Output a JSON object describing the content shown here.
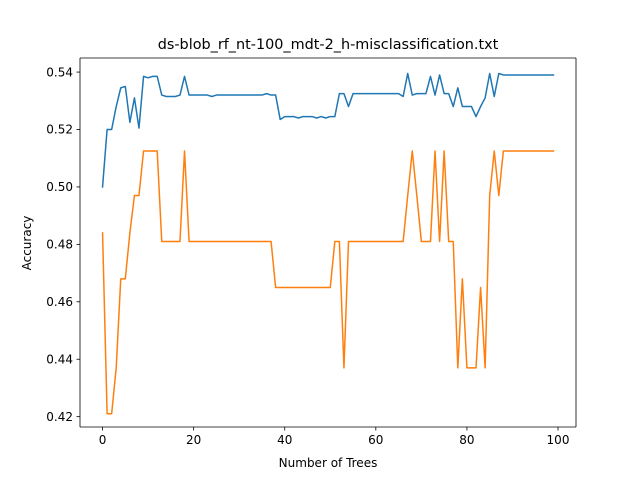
{
  "chart_data": {
    "type": "line",
    "title": "ds-blob_rf_nt-100_mdt-2_h-misclassification.txt",
    "xlabel": "Number of Trees",
    "ylabel": "Accuracy",
    "xlim": [
      -4.95,
      103.95
    ],
    "ylim": [
      0.4164,
      0.5449
    ],
    "xticks": [
      0,
      20,
      40,
      60,
      80,
      100
    ],
    "xtick_labels": [
      "0",
      "20",
      "40",
      "60",
      "80",
      "100"
    ],
    "yticks": [
      0.42,
      0.44,
      0.46,
      0.48,
      0.5,
      0.52,
      0.54
    ],
    "ytick_labels": [
      "0.42",
      "0.44",
      "0.46",
      "0.48",
      "0.50",
      "0.52",
      "0.54"
    ],
    "grid": false,
    "legend": "none",
    "x": [
      0,
      1,
      2,
      3,
      4,
      5,
      6,
      7,
      8,
      9,
      10,
      11,
      12,
      13,
      14,
      15,
      16,
      17,
      18,
      19,
      20,
      21,
      22,
      23,
      24,
      25,
      26,
      27,
      28,
      29,
      30,
      31,
      32,
      33,
      34,
      35,
      36,
      37,
      38,
      39,
      40,
      41,
      42,
      43,
      44,
      45,
      46,
      47,
      48,
      49,
      50,
      51,
      52,
      53,
      54,
      55,
      56,
      57,
      58,
      59,
      60,
      61,
      62,
      63,
      64,
      65,
      66,
      67,
      68,
      69,
      70,
      71,
      72,
      73,
      74,
      75,
      76,
      77,
      78,
      79,
      80,
      81,
      82,
      83,
      84,
      85,
      86,
      87,
      88,
      89,
      90,
      91,
      92,
      93,
      94,
      95,
      96,
      97,
      98,
      99
    ],
    "series": [
      {
        "color": "#1f77b4",
        "values": [
          0.5,
          0.52,
          0.52,
          0.528,
          0.5345,
          0.535,
          0.5225,
          0.531,
          0.5205,
          0.5385,
          0.538,
          0.5385,
          0.5385,
          0.532,
          0.5315,
          0.5315,
          0.5315,
          0.532,
          0.5385,
          0.532,
          0.532,
          0.532,
          0.532,
          0.532,
          0.5315,
          0.532,
          0.532,
          0.532,
          0.532,
          0.532,
          0.532,
          0.532,
          0.532,
          0.532,
          0.532,
          0.532,
          0.5325,
          0.532,
          0.532,
          0.5235,
          0.5245,
          0.5245,
          0.5245,
          0.524,
          0.5245,
          0.5245,
          0.5245,
          0.524,
          0.5245,
          0.524,
          0.5245,
          0.5245,
          0.5325,
          0.5325,
          0.528,
          0.5325,
          0.5325,
          0.5325,
          0.5325,
          0.5325,
          0.5325,
          0.5325,
          0.5325,
          0.5325,
          0.5325,
          0.5325,
          0.5315,
          0.5395,
          0.532,
          0.5325,
          0.5325,
          0.5325,
          0.5385,
          0.532,
          0.539,
          0.5325,
          0.5325,
          0.528,
          0.5345,
          0.528,
          0.528,
          0.528,
          0.5245,
          0.528,
          0.531,
          0.5395,
          0.5315,
          0.5395,
          0.539,
          0.539,
          0.539,
          0.539,
          0.539,
          0.539,
          0.539,
          0.539,
          0.539,
          0.539,
          0.539,
          0.539
        ]
      },
      {
        "color": "#ff7f0e",
        "values": [
          0.484,
          0.421,
          0.421,
          0.437,
          0.468,
          0.468,
          0.484,
          0.497,
          0.497,
          0.5125,
          0.5125,
          0.5125,
          0.5125,
          0.481,
          0.481,
          0.481,
          0.481,
          0.481,
          0.5125,
          0.481,
          0.481,
          0.481,
          0.481,
          0.481,
          0.481,
          0.481,
          0.481,
          0.481,
          0.481,
          0.481,
          0.481,
          0.481,
          0.481,
          0.481,
          0.481,
          0.481,
          0.481,
          0.481,
          0.465,
          0.465,
          0.465,
          0.465,
          0.465,
          0.465,
          0.465,
          0.465,
          0.465,
          0.465,
          0.465,
          0.465,
          0.465,
          0.481,
          0.481,
          0.437,
          0.481,
          0.481,
          0.481,
          0.481,
          0.481,
          0.481,
          0.481,
          0.481,
          0.481,
          0.481,
          0.481,
          0.481,
          0.481,
          0.497,
          0.5125,
          0.497,
          0.481,
          0.481,
          0.481,
          0.5125,
          0.481,
          0.5125,
          0.481,
          0.481,
          0.437,
          0.468,
          0.437,
          0.437,
          0.437,
          0.465,
          0.437,
          0.497,
          0.5125,
          0.497,
          0.5125,
          0.5125,
          0.5125,
          0.5125,
          0.5125,
          0.5125,
          0.5125,
          0.5125,
          0.5125,
          0.5125,
          0.5125,
          0.5125
        ]
      }
    ]
  }
}
